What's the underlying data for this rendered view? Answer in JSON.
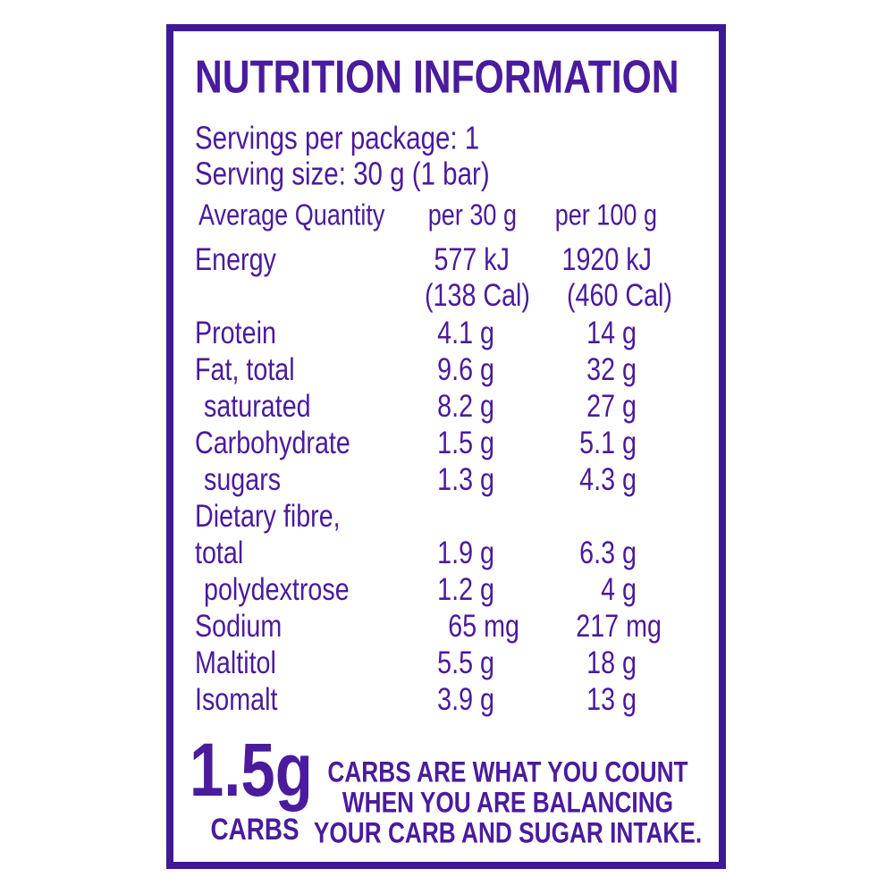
{
  "header": {
    "title": "NUTRITION INFORMATION"
  },
  "servings": [
    "Servings per package: 1",
    "Serving size: 30 g (1 bar)"
  ],
  "table": {
    "columns": [
      "Average Quantity",
      "per 30 g",
      "per 100 g"
    ],
    "rows": [
      {
        "label": "Energy",
        "per_serving": [
          "577 kJ",
          "(138 Cal)"
        ],
        "per_100g": [
          "1920 kJ",
          "(460 Cal)"
        ]
      },
      {
        "label": "Protein",
        "per_serving": "4.1 g",
        "per_100g": "14 g"
      },
      {
        "label": "Fat, total",
        "per_serving": "9.6 g",
        "per_100g": "32 g"
      },
      {
        "label": "saturated",
        "per_serving": "8.2 g",
        "per_100g": "27 g"
      },
      {
        "label": "Carbohydrate",
        "per_serving": "1.5 g",
        "per_100g": "5.1 g"
      },
      {
        "label": "sugars",
        "per_serving": "1.3 g",
        "per_100g": "4.3 g"
      },
      {
        "label": "Dietary fibre,"
      },
      {
        "label": "total",
        "per_serving": "1.9 g",
        "per_100g": "6.3 g"
      },
      {
        "label": "polydextrose",
        "per_serving": "1.2 g",
        "per_100g": "4 g"
      },
      {
        "label": "Sodium",
        "per_serving": "65 mg",
        "per_100g": "217 mg"
      },
      {
        "label": "Maltitol",
        "per_serving": "5.5 g",
        "per_100g": "18 g"
      },
      {
        "label": "Isomalt",
        "per_serving": "3.9 g",
        "per_100g": "13 g"
      }
    ]
  },
  "badge": {
    "amount": "1.5g",
    "label": "CARBS"
  },
  "note": [
    "CARBS ARE WHAT YOU COUNT",
    "WHEN YOU ARE BALANCING",
    "YOUR CARB AND SUGAR INTAKE."
  ]
}
